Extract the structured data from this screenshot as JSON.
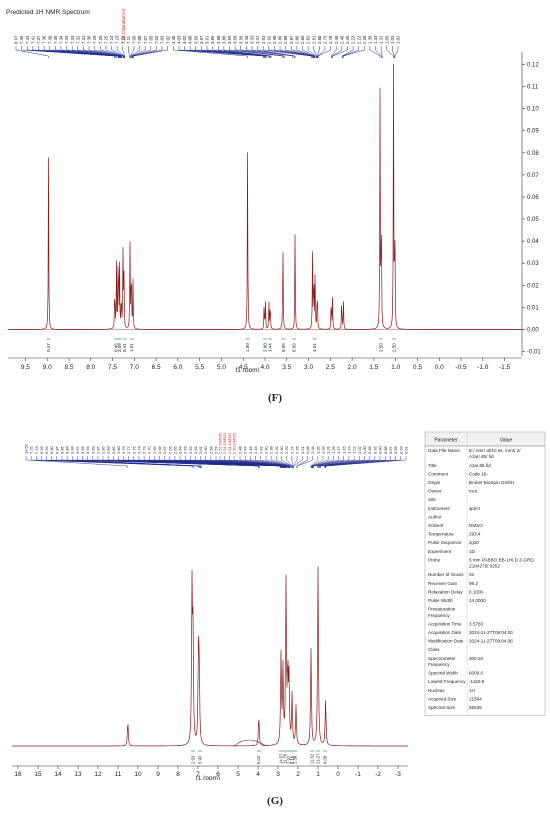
{
  "panels": {
    "F": {
      "title": "Predicted 1H NMR Spectrum",
      "caption": "(F)",
      "chart_data": {
        "type": "line",
        "title": "Predicted 1H NMR Spectrum",
        "xlabel": "f1 (ppm)",
        "ylabel": "",
        "xlim": [
          9.9,
          -1.9
        ],
        "ylim": [
          -0.012,
          0.122
        ],
        "xticks": [
          "9.5",
          "9.0",
          "8.5",
          "8.0",
          "7.5",
          "7.0",
          "6.5",
          "6.0",
          "5.5",
          "5.0",
          "4.5",
          "4.0",
          "3.5",
          "3.0",
          "2.5",
          "2.0",
          "1.5",
          "1.0",
          "0.5",
          "0.0",
          "-0.5",
          "-1.0",
          "-1.5"
        ],
        "yticks": [
          "0.12",
          "0.11",
          "0.10",
          "0.09",
          "0.08",
          "0.07",
          "0.06",
          "0.05",
          "0.04",
          "0.03",
          "0.02",
          "0.01",
          "0.00",
          "-0.01"
        ],
        "peaks": [
          {
            "ppm": 8.97,
            "height": 0.078
          },
          {
            "ppm": 7.45,
            "height": 0.022
          },
          {
            "ppm": 7.41,
            "height": 0.03
          },
          {
            "ppm": 7.37,
            "height": 0.043
          },
          {
            "ppm": 7.34,
            "height": 0.028
          },
          {
            "ppm": 7.3,
            "height": 0.018
          },
          {
            "ppm": 7.26,
            "height": 0.034
          },
          {
            "ppm": 7.24,
            "height": 0.03
          },
          {
            "ppm": 7.1,
            "height": 0.039
          },
          {
            "ppm": 7.07,
            "height": 0.033
          },
          {
            "ppm": 7.03,
            "height": 0.022
          },
          {
            "ppm": 4.4,
            "height": 0.087
          },
          {
            "ppm": 4.02,
            "height": 0.012
          },
          {
            "ppm": 3.99,
            "height": 0.013
          },
          {
            "ppm": 3.91,
            "height": 0.013
          },
          {
            "ppm": 3.88,
            "height": 0.014
          },
          {
            "ppm": 3.59,
            "height": 0.045
          },
          {
            "ppm": 3.31,
            "height": 0.045
          },
          {
            "ppm": 2.91,
            "height": 0.034
          },
          {
            "ppm": 2.88,
            "height": 0.03
          },
          {
            "ppm": 2.85,
            "height": 0.026
          },
          {
            "ppm": 2.8,
            "height": 0.022
          },
          {
            "ppm": 2.48,
            "height": 0.016
          },
          {
            "ppm": 2.45,
            "height": 0.014
          },
          {
            "ppm": 2.24,
            "height": 0.015
          },
          {
            "ppm": 2.2,
            "height": 0.014
          },
          {
            "ppm": 1.36,
            "height": 0.107
          },
          {
            "ppm": 1.33,
            "height": 0.062
          },
          {
            "ppm": 1.05,
            "height": 0.118
          },
          {
            "ppm": 1.02,
            "height": 0.057
          }
        ],
        "peak_labels": [
          "8.97",
          "7.45",
          "7.43",
          "7.41",
          "7.37",
          "7.36",
          "7.36",
          "7.35",
          "7.34",
          "7.33",
          "7.33",
          "7.32",
          "7.31",
          "7.30",
          "7.29",
          "7.26",
          "7.25",
          "7.24",
          "7.23",
          "7.22",
          "7.11",
          "7.09",
          "7.08",
          "7.07",
          "7.05",
          "7.04",
          "7.03",
          "7.02",
          "4.40",
          "4.03",
          "4.02",
          "4.00",
          "3.99",
          "3.97",
          "3.91",
          "3.89",
          "3.88",
          "3.86",
          "3.59",
          "3.58",
          "3.56",
          "3.36",
          "3.33",
          "3.31",
          "2.93",
          "2.92",
          "2.90",
          "2.89",
          "2.88",
          "2.87",
          "2.86",
          "2.85",
          "2.82",
          "2.81",
          "2.80",
          "2.79",
          "2.78",
          "2.48",
          "2.46",
          "2.45",
          "2.23",
          "2.22",
          "2.20",
          "1.36",
          "1.33",
          "1.31",
          "1.05",
          "1.03",
          "1.02"
        ],
        "solvent_label": "7.25 Chloroform-d",
        "integrals": [
          {
            "ppm": 8.97,
            "value": "0.47"
          },
          {
            "ppm": 7.42,
            "value": "0.46"
          },
          {
            "ppm": 7.34,
            "value": "3.09"
          },
          {
            "ppm": 7.22,
            "value": "0.41"
          },
          {
            "ppm": 7.06,
            "value": "1.01"
          },
          {
            "ppm": 4.4,
            "value": "1.50"
          },
          {
            "ppm": 4.0,
            "value": "2.00"
          },
          {
            "ppm": 3.89,
            "value": "1.44"
          },
          {
            "ppm": 3.58,
            "value": "0.99"
          },
          {
            "ppm": 3.33,
            "value": "0.99"
          },
          {
            "ppm": 2.86,
            "value": "4.01"
          },
          {
            "ppm": 1.34,
            "value": "2.50"
          },
          {
            "ppm": 1.04,
            "value": "2.50"
          }
        ]
      }
    },
    "G": {
      "caption": "(G)",
      "chart_data": {
        "type": "line",
        "title": "",
        "xlabel": "f1 (ppm)",
        "ylabel": "",
        "xlim": [
          16.3,
          -3.5
        ],
        "xticks": [
          "16",
          "15",
          "14",
          "13",
          "12",
          "11",
          "10",
          "9",
          "8",
          "7",
          "6",
          "5",
          "4",
          "3",
          "2",
          "1",
          "0",
          "-1",
          "-2",
          "-3"
        ],
        "peaks": [
          {
            "ppm": 10.51,
            "height": 0.14
          },
          {
            "ppm": 7.3,
            "height": 0.86
          },
          {
            "ppm": 7.25,
            "height": 0.6
          },
          {
            "ppm": 6.98,
            "height": 0.48
          },
          {
            "ppm": 6.94,
            "height": 0.42
          },
          {
            "ppm": 3.96,
            "height": 0.17
          },
          {
            "ppm": 2.85,
            "height": 0.5
          },
          {
            "ppm": 2.75,
            "height": 0.42
          },
          {
            "ppm": 2.6,
            "height": 0.9
          },
          {
            "ppm": 2.51,
            "height": 0.4
          },
          {
            "ppm": 2.45,
            "height": 0.35
          },
          {
            "ppm": 2.3,
            "height": 0.28
          },
          {
            "ppm": 2.1,
            "height": 0.22
          },
          {
            "ppm": 1.35,
            "height": 0.54
          },
          {
            "ppm": 1.0,
            "height": 1.0
          },
          {
            "ppm": 0.62,
            "height": 0.26
          }
        ],
        "peak_labels_left": [
          "10.51",
          "7.25",
          "7.23",
          "6.96",
          "6.92",
          "6.90",
          "6.87",
          "6.85",
          "6.84",
          "3.98",
          "3.97",
          "3.95",
          "3.94",
          "2.89",
          "2.87",
          "2.85",
          "2.83",
          "2.82",
          "2.80",
          "2.79",
          "2.77",
          "2.75",
          "2.74",
          "2.73",
          "2.70",
          "2.69",
          "2.68",
          "2.67",
          "2.66",
          "2.65",
          "2.64",
          "2.63",
          "2.62",
          "2.62",
          "2.61",
          "2.60",
          "2.58",
          "2.57"
        ],
        "peak_labels_mid": [
          "2.52 DMSO",
          "2.51 DMSO",
          "2.51 DMSO",
          "2.50 DMSO"
        ],
        "peak_labels_right": [
          "2.48",
          "2.47",
          "2.45",
          "2.43",
          "2.42",
          "2.40",
          "2.38",
          "2.32",
          "2.30",
          "2.29",
          "2.27",
          "2.25",
          "2.21",
          "2.06",
          "2.04",
          "1.35",
          "1.33",
          "1.31",
          "1.29",
          "1.27",
          "1.25",
          "1.24",
          "1.22",
          "1.02",
          "1.00",
          "0.98",
          "0.92",
          "0.90",
          "0.88",
          "0.67",
          "0.65",
          "0.63",
          "0.61"
        ],
        "integrals": [
          {
            "ppm": 7.25,
            "value": "2.93"
          },
          {
            "ppm": 6.9,
            "value": "5.90"
          },
          {
            "ppm": 3.96,
            "value": "6.04"
          },
          {
            "ppm": 2.85,
            "value": "14.07"
          },
          {
            "ppm": 2.65,
            "value": "11.76"
          },
          {
            "ppm": 2.45,
            "value": "2.97"
          },
          {
            "ppm": 2.3,
            "value": "6.16"
          },
          {
            "ppm": 2.15,
            "value": "2.38"
          },
          {
            "ppm": 1.3,
            "value": "11.62"
          },
          {
            "ppm": 1.0,
            "value": "21.27"
          },
          {
            "ppm": 0.64,
            "value": "9.08"
          }
        ]
      },
      "param_table": {
        "header": [
          "Parameter",
          "Value"
        ],
        "rows": [
          [
            "Data File Name",
            "E:/ nmr/ 3010 ss. /nmr/ 2/ Azar/ 65/ fid"
          ],
          [
            "Title",
            "Azar.65.fid"
          ],
          [
            "Comment",
            "Code 15-"
          ],
          [
            "Origin",
            "Bruker BioSpin GmbH"
          ],
          [
            "Owner",
            "root"
          ],
          [
            "Site",
            ""
          ],
          [
            "Instrument",
            "spect"
          ],
          [
            "Author",
            ""
          ],
          [
            "Solvent",
            "DMSO"
          ],
          [
            "Temperature",
            "293.4"
          ],
          [
            "Pulse Sequence",
            "zg30"
          ],
          [
            "Experiment",
            "1D"
          ],
          [
            "Probe",
            "5 mm PABBO BB-1H/ D Z-GRD Z104275/ 0252"
          ],
          [
            "Number of Scans",
            "32"
          ],
          [
            "Receiver Gain",
            "99.2"
          ],
          [
            "Relaxation Delay",
            "0.1000"
          ],
          [
            "Pulse Width",
            "14.0000"
          ],
          [
            "Presaturation Frequency",
            ""
          ],
          [
            "Acquisition Time",
            "3.5783"
          ],
          [
            "Acquisition Date",
            "2024-11-27T09:04:00"
          ],
          [
            "Modification Date",
            "2024-11-27T09:04:36"
          ],
          [
            "Class",
            ""
          ],
          [
            "Spectrometer Frequency",
            "300.20"
          ],
          [
            "Spectral Width",
            "6009.6"
          ],
          [
            "Lowest Frequency",
            "-1150.9"
          ],
          [
            "Nucleus",
            "1H"
          ],
          [
            "Acquired Size",
            "21504"
          ],
          [
            "Spectral Size",
            "65536"
          ]
        ]
      }
    }
  },
  "colors": {
    "spectrum": "#8b1a1a",
    "label_lines": "#1f2d8a",
    "integral": "#1a7a3a",
    "solvent": "#cc2222",
    "axis": "#333333"
  }
}
